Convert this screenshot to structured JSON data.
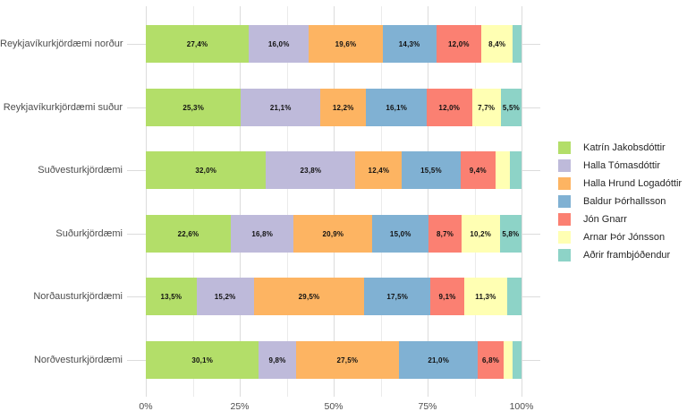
{
  "chart_data": {
    "type": "bar",
    "orientation": "horizontal",
    "stacked": true,
    "value_unit": "percent",
    "title": "",
    "x_axis": {
      "tick_labels": [
        "0%",
        "25%",
        "50%",
        "75%",
        "100%"
      ],
      "tick_values": [
        0,
        25,
        50,
        75,
        100
      ],
      "range": [
        0,
        100
      ],
      "minor_grid_step": 12.5,
      "grid": true
    },
    "categories": [
      "Reykjavíkurkjördæmi norður",
      "Reykjavíkurkjördæmi suður",
      "Suðvesturkjördæmi",
      "Suðurkjördæmi",
      "Norðausturkjördæmi",
      "Norðvesturkjördæmi"
    ],
    "series": [
      {
        "name": "Katrín Jakobsdóttir",
        "color": "#B3DE69",
        "values": [
          27.4,
          25.3,
          32.0,
          22.6,
          13.5,
          30.1
        ]
      },
      {
        "name": "Halla Tómasdóttir",
        "color": "#BEBADA",
        "values": [
          16.0,
          21.1,
          23.8,
          16.8,
          15.2,
          9.8
        ]
      },
      {
        "name": "Halla Hrund Logadóttir",
        "color": "#FDB462",
        "values": [
          19.6,
          12.2,
          12.4,
          20.9,
          29.5,
          27.5
        ]
      },
      {
        "name": "Baldur Þórhallsson",
        "color": "#80B1D3",
        "values": [
          14.3,
          16.1,
          15.5,
          15.0,
          17.5,
          21.0
        ]
      },
      {
        "name": "Jón Gnarr",
        "color": "#FB8072",
        "values": [
          12.0,
          12.0,
          9.4,
          8.7,
          9.1,
          6.8
        ]
      },
      {
        "name": "Arnar Þór Jónsson",
        "color": "#FFFFB3",
        "values": [
          8.4,
          7.7,
          3.8,
          10.2,
          11.3,
          2.5
        ]
      },
      {
        "name": "Aðrir frambjóðendur",
        "color": "#8DD3C7",
        "values": [
          2.3,
          5.5,
          3.1,
          5.8,
          3.9,
          2.3
        ]
      }
    ],
    "segment_labels": [
      [
        "27,4%",
        "16,0%",
        "19,6%",
        "14,3%",
        "12,0%",
        "8,4%",
        ""
      ],
      [
        "25,3%",
        "21,1%",
        "12,2%",
        "16,1%",
        "12,0%",
        "7,7%",
        "5,5%"
      ],
      [
        "32,0%",
        "23,8%",
        "12,4%",
        "15,5%",
        "9,4%",
        "",
        ""
      ],
      [
        "22,6%",
        "16,8%",
        "20,9%",
        "15,0%",
        "8,7%",
        "10,2%",
        "5,8%"
      ],
      [
        "13,5%",
        "15,2%",
        "29,5%",
        "17,5%",
        "9,1%",
        "11,3%",
        ""
      ],
      [
        "30,1%",
        "9,8%",
        "27,5%",
        "21,0%",
        "6,8%",
        "",
        ""
      ]
    ],
    "legend": {
      "position": "right"
    }
  },
  "colors": {
    "background": "#FFFFFF",
    "grid_major": "#DCDCDC",
    "grid_minor": "#EBEBEB",
    "axis_text": "#4D4D4D",
    "bar_label_text": "#111111",
    "legend_text": "#262626"
  }
}
